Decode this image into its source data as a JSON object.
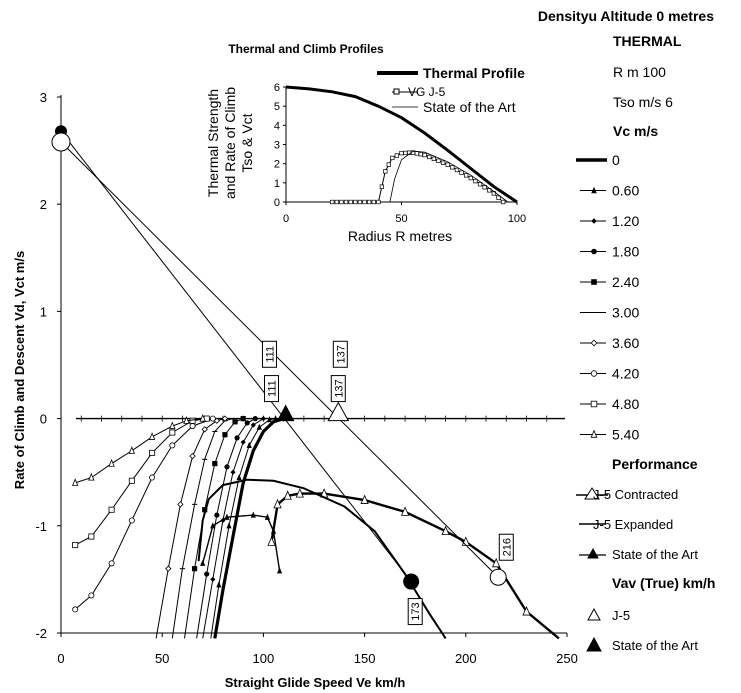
{
  "header": {
    "density_altitude": "Densityu Altitude 0 metres",
    "thermal_heading": "THERMAL",
    "r_value": "R m 100",
    "tso_value": "Tso m/s 6",
    "vc_heading": "Vc m/s",
    "performance_heading": "Performance",
    "vav_heading": "Vav (True) km/h"
  },
  "legend": {
    "vc_items": [
      "0",
      "0.60",
      "1.20",
      "1.80",
      "2.40",
      "3.00",
      "3.60",
      "4.20",
      "4.80",
      "5.40"
    ],
    "performance_items": [
      "J-5 Contracted",
      "J-5 Expanded",
      "State of the Art"
    ],
    "vav_items": [
      "J-5",
      "State of the Art"
    ]
  },
  "chart_data": [
    {
      "type": "line",
      "title": "",
      "xlabel": "Straight Glide Speed   Ve  km/h",
      "ylabel": "Rate of Climb and Descent  Vd, Vct  m/s",
      "xlim": [
        0,
        250
      ],
      "ylim": [
        -2,
        3
      ],
      "x_ticks": [
        "0",
        "50",
        "100",
        "150",
        "200",
        "250"
      ],
      "y_ticks": [
        "-2",
        "-1",
        "0",
        "1",
        "2",
        "3"
      ],
      "climb_curves": [
        {
          "vc": "0",
          "points": [
            [
              76,
              -2.05
            ],
            [
              80,
              -1.6
            ],
            [
              85,
              -1.1
            ],
            [
              90,
              -0.6
            ],
            [
              95,
              -0.3
            ],
            [
              100,
              -0.12
            ],
            [
              105,
              -0.03
            ],
            [
              110,
              0
            ]
          ]
        },
        {
          "vc": "0.60",
          "points": [
            [
              74,
              -2.05
            ],
            [
              78,
              -1.55
            ],
            [
              83,
              -1.0
            ],
            [
              88,
              -0.55
            ],
            [
              93,
              -0.25
            ],
            [
              98,
              -0.08
            ],
            [
              103,
              -0.01
            ],
            [
              106,
              0
            ]
          ]
        },
        {
          "vc": "1.20",
          "points": [
            [
              70,
              -2.05
            ],
            [
              75,
              -1.5
            ],
            [
              80,
              -0.95
            ],
            [
              85,
              -0.5
            ],
            [
              90,
              -0.22
            ],
            [
              95,
              -0.06
            ],
            [
              100,
              0
            ]
          ]
        },
        {
          "vc": "1.80",
          "points": [
            [
              67,
              -2.05
            ],
            [
              72,
              -1.45
            ],
            [
              77,
              -0.9
            ],
            [
              82,
              -0.45
            ],
            [
              87,
              -0.18
            ],
            [
              92,
              -0.04
            ],
            [
              96,
              0
            ]
          ]
        },
        {
          "vc": "2.40",
          "points": [
            [
              61,
              -2.05
            ],
            [
              66,
              -1.4
            ],
            [
              71,
              -0.85
            ],
            [
              76,
              -0.42
            ],
            [
              81,
              -0.15
            ],
            [
              86,
              -0.03
            ],
            [
              90,
              0
            ]
          ]
        },
        {
          "vc": "3.00",
          "points": [
            [
              55,
              -2.05
            ],
            [
              60,
              -1.4
            ],
            [
              66,
              -0.8
            ],
            [
              71,
              -0.38
            ],
            [
              76,
              -0.12
            ],
            [
              81,
              -0.02
            ],
            [
              85,
              0
            ]
          ]
        },
        {
          "vc": "3.60",
          "points": [
            [
              47,
              -2.05
            ],
            [
              53,
              -1.4
            ],
            [
              59,
              -0.8
            ],
            [
              65,
              -0.35
            ],
            [
              71,
              -0.1
            ],
            [
              77,
              -0.02
            ],
            [
              81,
              0
            ]
          ]
        },
        {
          "vc": "4.20",
          "points": [
            [
              7,
              -1.78
            ],
            [
              15,
              -1.65
            ],
            [
              25,
              -1.35
            ],
            [
              35,
              -0.95
            ],
            [
              45,
              -0.55
            ],
            [
              55,
              -0.25
            ],
            [
              65,
              -0.07
            ],
            [
              75,
              0
            ]
          ]
        },
        {
          "vc": "4.80",
          "points": [
            [
              7,
              -1.18
            ],
            [
              15,
              -1.1
            ],
            [
              25,
              -0.85
            ],
            [
              35,
              -0.58
            ],
            [
              45,
              -0.32
            ],
            [
              55,
              -0.13
            ],
            [
              65,
              -0.02
            ],
            [
              72,
              0
            ]
          ]
        },
        {
          "vc": "5.40",
          "points": [
            [
              7,
              -0.6
            ],
            [
              15,
              -0.55
            ],
            [
              25,
              -0.42
            ],
            [
              35,
              -0.3
            ],
            [
              45,
              -0.17
            ],
            [
              55,
              -0.07
            ],
            [
              62,
              -0.02
            ],
            [
              70,
              0
            ]
          ]
        }
      ],
      "performance_curves": [
        {
          "name": "J-5 Contracted",
          "points": [
            [
              104,
              -1.15
            ],
            [
              107,
              -0.8
            ],
            [
              112,
              -0.72
            ],
            [
              118,
              -0.7
            ],
            [
              130,
              -0.7
            ],
            [
              150,
              -0.76
            ],
            [
              170,
              -0.87
            ],
            [
              190,
              -1.05
            ],
            [
              200,
              -1.15
            ],
            [
              215,
              -1.35
            ],
            [
              230,
              -1.8
            ],
            [
              246,
              -2.05
            ]
          ]
        },
        {
          "name": "J-5 Expanded",
          "points": [
            [
              68,
              -1.33
            ],
            [
              70,
              -0.95
            ],
            [
              73,
              -0.75
            ],
            [
              80,
              -0.62
            ],
            [
              92,
              -0.57
            ],
            [
              105,
              -0.58
            ],
            [
              120,
              -0.65
            ],
            [
              140,
              -0.82
            ],
            [
              155,
              -1.05
            ],
            [
              170,
              -1.45
            ],
            [
              182,
              -1.82
            ],
            [
              190,
              -2.05
            ]
          ]
        },
        {
          "name": "State of the Art",
          "points": [
            [
              70,
              -1.35
            ],
            [
              75,
              -1.0
            ],
            [
              82,
              -0.92
            ],
            [
              95,
              -0.9
            ],
            [
              102,
              -0.92
            ],
            [
              105,
              -1.05
            ],
            [
              108,
              -1.42
            ]
          ]
        }
      ],
      "tangent_lines": [
        {
          "name": "J-5",
          "from": [
            0,
            2.58
          ],
          "to": [
            216,
            -1.48
          ]
        },
        {
          "name": "State of the Art",
          "from": [
            0,
            2.68
          ],
          "to": [
            173,
            -1.52
          ]
        }
      ],
      "markers": {
        "j5_vav": {
          "x": 137,
          "y": 0
        },
        "sota_vav": {
          "x": 111,
          "y": 0
        },
        "j5_circle_top": {
          "x": 0,
          "y": 2.58
        },
        "sota_circle_top": {
          "x": 0,
          "y": 2.68
        },
        "j5_circle_bottom": {
          "x": 216,
          "y": -1.48
        },
        "sota_circle_bottom": {
          "x": 173,
          "y": -1.52
        }
      },
      "box_labels": [
        {
          "text": "111",
          "x": 103,
          "y": 0.6
        },
        {
          "text": "111",
          "x": 104,
          "y": 0.28
        },
        {
          "text": "137",
          "x": 138,
          "y": 0.6
        },
        {
          "text": "137",
          "x": 137,
          "y": 0.28
        },
        {
          "text": "216",
          "x": 220,
          "y": -1.2
        },
        {
          "text": "173",
          "x": 175,
          "y": -1.8
        }
      ]
    },
    {
      "type": "line",
      "title": "Thermal and Climb Profiles",
      "xlabel": "Radius  R metres",
      "ylabel_lines": [
        "Thermal Strength",
        "and Rate of Climb",
        "Tso & Vct"
      ],
      "xlim": [
        0,
        100
      ],
      "ylim": [
        0,
        6
      ],
      "x_ticks": [
        "0",
        "50",
        "100"
      ],
      "y_ticks": [
        "0",
        "1",
        "2",
        "3",
        "4",
        "5",
        "6"
      ],
      "series": [
        {
          "name": "Thermal Profile",
          "points": [
            [
              0,
              6
            ],
            [
              10,
              5.9
            ],
            [
              20,
              5.75
            ],
            [
              30,
              5.5
            ],
            [
              40,
              5.0
            ],
            [
              50,
              4.4
            ],
            [
              60,
              3.6
            ],
            [
              70,
              2.7
            ],
            [
              80,
              1.75
            ],
            [
              90,
              0.8
            ],
            [
              100,
              0
            ]
          ]
        },
        {
          "name": "VG  J-5",
          "points": [
            [
              20,
              0
            ],
            [
              40,
              0
            ],
            [
              43,
              1.6
            ],
            [
              46,
              2.3
            ],
            [
              50,
              2.55
            ],
            [
              55,
              2.58
            ],
            [
              60,
              2.45
            ],
            [
              70,
              1.95
            ],
            [
              80,
              1.25
            ],
            [
              90,
              0.45
            ],
            [
              94,
              0
            ]
          ]
        },
        {
          "name": "State of the Art",
          "points": [
            [
              45,
              0
            ],
            [
              47,
              1.2
            ],
            [
              50,
              2.2
            ],
            [
              55,
              2.65
            ],
            [
              60,
              2.6
            ],
            [
              70,
              2.1
            ],
            [
              80,
              1.4
            ],
            [
              90,
              0.55
            ],
            [
              96,
              0
            ]
          ]
        }
      ]
    }
  ]
}
